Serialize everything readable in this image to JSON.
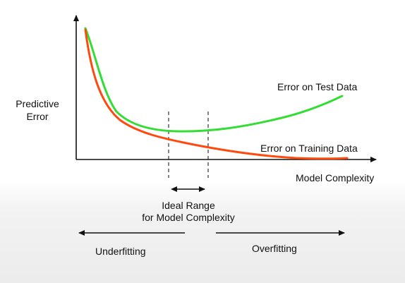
{
  "labels": {
    "y_axis": "Predictive\nError",
    "x_axis": "Model Complexity",
    "test_curve": "Error on Test Data",
    "training_curve": "Error on Training Data",
    "ideal_range_line1": "Ideal Range",
    "ideal_range_line2": "for Model Complexity",
    "underfitting": "Underfitting",
    "overfitting": "Overfitting"
  },
  "colors": {
    "test_curve": "#33dd33",
    "training_curve": "#ff4a0f",
    "axis": "#111111",
    "guides": "#333333"
  }
}
